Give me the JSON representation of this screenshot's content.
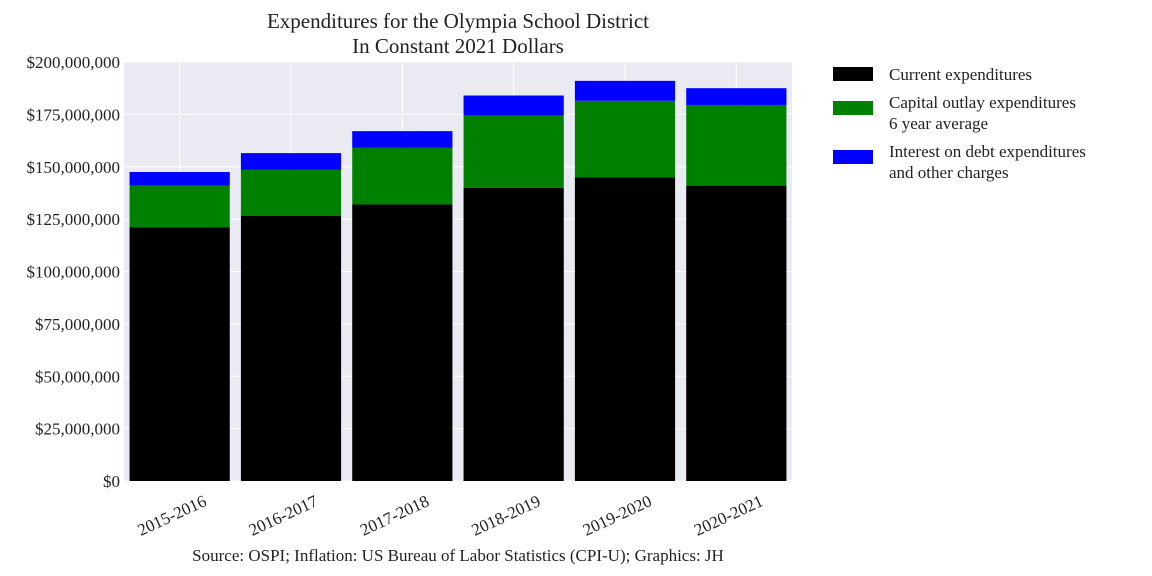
{
  "chart_data": {
    "type": "bar",
    "stacked": true,
    "title": "Expenditures for the Olympia School District",
    "subtitle": "In Constant 2021 Dollars",
    "xlabel": "",
    "ylabel": "",
    "ylim": [
      0,
      200000000
    ],
    "yticks": [
      0,
      25000000,
      50000000,
      75000000,
      100000000,
      125000000,
      150000000,
      175000000,
      200000000
    ],
    "ytick_labels": [
      "$0",
      "$25,000,000",
      "$50,000,000",
      "$75,000,000",
      "$100,000,000",
      "$125,000,000",
      "$150,000,000",
      "$175,000,000",
      "$200,000,000"
    ],
    "grid": true,
    "legend_placement": "outside-right",
    "categories": [
      "2015-2016",
      "2016-2017",
      "2017-2018",
      "2018-2019",
      "2019-2020",
      "2020-2021"
    ],
    "series": [
      {
        "name": "Current expenditures",
        "color": "#000000",
        "values": [
          121000000,
          126500000,
          132000000,
          140000000,
          145000000,
          141000000
        ]
      },
      {
        "name": "Capital outlay expenditures\n6 year average",
        "color": "#008000",
        "values": [
          20000000,
          22000000,
          27000000,
          34500000,
          36500000,
          38500000
        ]
      },
      {
        "name": "Interest on debt expenditures\nand other charges",
        "color": "#0000ff",
        "values": [
          6500000,
          8000000,
          8000000,
          9500000,
          9500000,
          8000000
        ]
      }
    ],
    "footer": "Source: OSPI; Inflation: US Bureau of Labor Statistics (CPI-U); Graphics: JH"
  }
}
